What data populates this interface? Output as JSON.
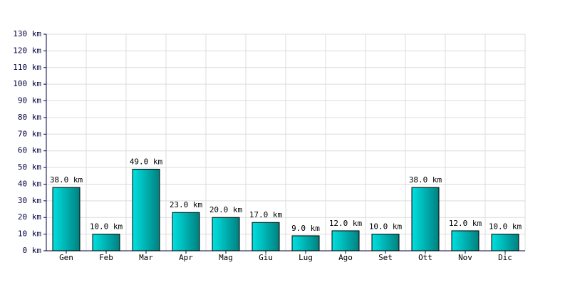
{
  "chart_data": {
    "type": "bar",
    "categories": [
      "Gen",
      "Feb",
      "Mar",
      "Apr",
      "Mag",
      "Giu",
      "Lug",
      "Ago",
      "Set",
      "Ott",
      "Nov",
      "Dic"
    ],
    "values": [
      38,
      10,
      49,
      23,
      20,
      17,
      9,
      12,
      10,
      38,
      12,
      10
    ],
    "value_labels": [
      "38.0 km",
      "10.0 km",
      "49.0 km",
      "23.0 km",
      "20.0 km",
      "17.0 km",
      "9.0 km",
      "12.0 km",
      "10.0 km",
      "38.0 km",
      "12.0 km",
      "10.0 km"
    ],
    "color": "#00e0e0",
    "ylim": [
      0,
      130
    ],
    "yticks": [
      {
        "value": 0,
        "label": "0 km"
      },
      {
        "value": 10,
        "label": "10 km"
      },
      {
        "value": 20,
        "label": "20 km"
      },
      {
        "value": 30,
        "label": "30 km"
      },
      {
        "value": 40,
        "label": "40 km"
      },
      {
        "value": 50,
        "label": "50 km"
      },
      {
        "value": 60,
        "label": "60 km"
      },
      {
        "value": 70,
        "label": "70 km"
      },
      {
        "value": 80,
        "label": "80 km"
      },
      {
        "value": 90,
        "label": "90 km"
      },
      {
        "value": 100,
        "label": "100 km"
      },
      {
        "value": 110,
        "label": "110 km"
      },
      {
        "value": 120,
        "label": "120 km"
      },
      {
        "value": 130,
        "label": "130 km"
      }
    ],
    "grid": true
  }
}
